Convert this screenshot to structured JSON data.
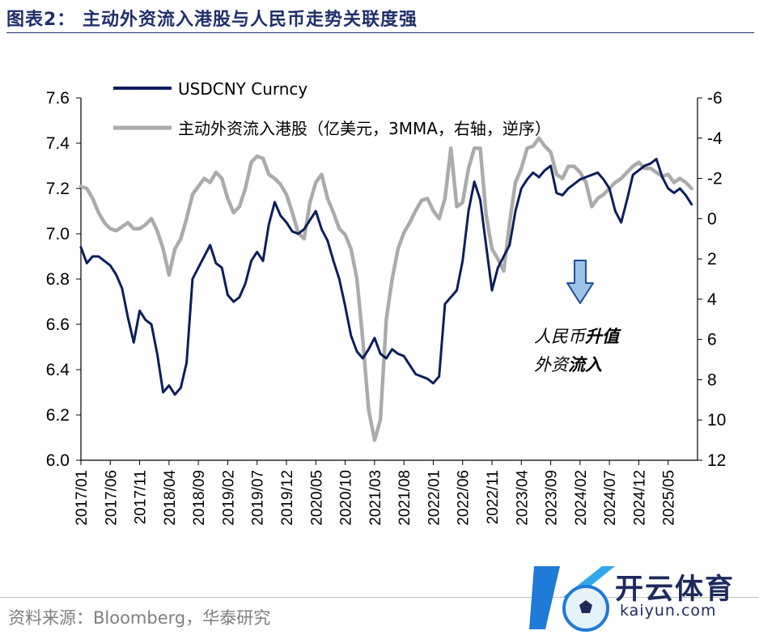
{
  "header": {
    "title": "图表2：  主动外资流入港股与人民币走势关联度强"
  },
  "footer": {
    "source": "资料来源：Bloomberg，华泰研究"
  },
  "watermark": {
    "brand": "开云体育",
    "domain": "kaiyun.com"
  },
  "colors": {
    "usdcny": "#0d1e5c",
    "flows": "#ababab",
    "arrow_fill": "#9dc3e6",
    "arrow_stroke": "#1f4e9a",
    "axis": "#000000"
  },
  "chart_data": {
    "type": "line",
    "title": "",
    "x_labels": [
      "2017/01",
      "2017/06",
      "2017/11",
      "2018/04",
      "2018/09",
      "2019/02",
      "2019/07",
      "2019/12",
      "2020/05",
      "2020/10",
      "2021/03",
      "2021/08",
      "2022/01",
      "2022/06",
      "2022/11",
      "2023/04",
      "2023/09",
      "2024/02",
      "2024/07",
      "2024/12",
      "2025/05"
    ],
    "x_range": [
      0,
      105
    ],
    "y_left": {
      "min": 6.0,
      "max": 7.6,
      "ticks": [
        "7.6",
        "7.4",
        "7.2",
        "7.0",
        "6.8",
        "6.6",
        "6.4",
        "6.2",
        "6.0"
      ]
    },
    "y_right": {
      "min": -6,
      "max": 12,
      "inverted": true,
      "ticks": [
        "-6",
        "-4",
        "-2",
        "0",
        "2",
        "4",
        "6",
        "8",
        "10",
        "12"
      ]
    },
    "legend": [
      "USDCNY Curncy",
      "主动外资流入港股（亿美元，3MMA，右轴，逆序）"
    ],
    "annotations": {
      "line1": [
        "人民币",
        "升值"
      ],
      "line2": [
        "外资",
        "流入"
      ]
    },
    "series": [
      {
        "name": "USDCNY Curncy",
        "axis": "left",
        "x": [
          0,
          1,
          2,
          3,
          4,
          5,
          6,
          7,
          8,
          9,
          10,
          11,
          12,
          13,
          14,
          15,
          16,
          17,
          18,
          19,
          20,
          21,
          22,
          23,
          24,
          25,
          26,
          27,
          28,
          29,
          30,
          31,
          32,
          33,
          34,
          35,
          36,
          37,
          38,
          39,
          40,
          41,
          42,
          43,
          44,
          45,
          46,
          47,
          48,
          49,
          50,
          51,
          52,
          53,
          54,
          55,
          56,
          57,
          58,
          59,
          60,
          61,
          62,
          63,
          64,
          65,
          66,
          67,
          68,
          69,
          70,
          71,
          72,
          73,
          74,
          75,
          76,
          77,
          78,
          79,
          80,
          81,
          82,
          83,
          84,
          85,
          86,
          87,
          88,
          89,
          90,
          91,
          92,
          93,
          94,
          95,
          96,
          97,
          98,
          99,
          100,
          101,
          102,
          103,
          104
        ],
        "values": [
          6.94,
          6.87,
          6.9,
          6.9,
          6.88,
          6.86,
          6.82,
          6.76,
          6.63,
          6.52,
          6.66,
          6.62,
          6.6,
          6.47,
          6.3,
          6.33,
          6.29,
          6.32,
          6.43,
          6.8,
          6.85,
          6.9,
          6.95,
          6.87,
          6.85,
          6.73,
          6.7,
          6.72,
          6.78,
          6.88,
          6.92,
          6.88,
          7.04,
          7.14,
          7.08,
          7.05,
          7.01,
          7.0,
          7.02,
          7.06,
          7.1,
          7.02,
          6.97,
          6.88,
          6.8,
          6.68,
          6.55,
          6.48,
          6.45,
          6.49,
          6.54,
          6.47,
          6.45,
          6.49,
          6.47,
          6.46,
          6.42,
          6.38,
          6.37,
          6.36,
          6.34,
          6.37,
          6.69,
          6.72,
          6.75,
          6.88,
          7.1,
          7.23,
          7.15,
          6.95,
          6.75,
          6.85,
          6.9,
          6.95,
          7.1,
          7.2,
          7.24,
          7.27,
          7.25,
          7.28,
          7.3,
          7.18,
          7.17,
          7.2,
          7.22,
          7.24,
          7.25,
          7.26,
          7.27,
          7.24,
          7.2,
          7.1,
          7.05,
          7.15,
          7.26,
          7.28,
          7.3,
          7.31,
          7.33,
          7.25,
          7.2,
          7.18,
          7.2,
          7.17,
          7.13
        ]
      },
      {
        "name": "主动外资流入港股（亿美元，3MMA，右轴，逆序）",
        "axis": "right",
        "x": [
          0,
          1,
          2,
          3,
          4,
          5,
          6,
          7,
          8,
          9,
          10,
          11,
          12,
          13,
          14,
          15,
          16,
          17,
          18,
          19,
          20,
          21,
          22,
          23,
          24,
          25,
          26,
          27,
          28,
          29,
          30,
          31,
          32,
          33,
          34,
          35,
          36,
          37,
          38,
          39,
          40,
          41,
          42,
          43,
          44,
          45,
          46,
          47,
          48,
          49,
          50,
          51,
          52,
          53,
          54,
          55,
          56,
          57,
          58,
          59,
          60,
          61,
          62,
          63,
          64,
          65,
          66,
          67,
          68,
          69,
          70,
          71,
          72,
          73,
          74,
          75,
          76,
          77,
          78,
          79,
          80,
          81,
          82,
          83,
          84,
          85,
          86,
          87,
          88,
          89,
          90,
          91,
          92,
          93,
          94,
          95,
          96,
          97,
          98,
          99,
          100,
          101,
          102,
          103,
          104
        ],
        "values": [
          -1.6,
          -1.5,
          -1.0,
          -0.3,
          0.2,
          0.5,
          0.6,
          0.4,
          0.2,
          0.5,
          0.5,
          0.3,
          0.0,
          0.6,
          1.5,
          2.8,
          1.5,
          1.0,
          0.0,
          -1.2,
          -1.6,
          -2.0,
          -1.8,
          -2.3,
          -2.0,
          -1.0,
          -0.3,
          -0.6,
          -1.5,
          -2.8,
          -3.1,
          -3.0,
          -2.2,
          -2.0,
          -1.7,
          -1.2,
          -0.3,
          0.7,
          1.0,
          -0.8,
          -1.8,
          -2.2,
          -1.0,
          -0.3,
          0.5,
          0.8,
          1.5,
          3.0,
          6.0,
          9.5,
          11.0,
          10.0,
          5.0,
          3.0,
          1.5,
          0.7,
          0.2,
          -0.4,
          -0.9,
          -1.0,
          -0.4,
          0.0,
          -1.0,
          -3.5,
          -0.6,
          -0.8,
          -2.5,
          -3.5,
          -3.5,
          -0.2,
          1.5,
          2.0,
          2.6,
          0.2,
          -1.8,
          -2.5,
          -3.5,
          -3.6,
          -4.0,
          -3.6,
          -3.3,
          -2.2,
          -2.0,
          -2.6,
          -2.6,
          -2.3,
          -1.8,
          -0.6,
          -1.0,
          -1.2,
          -1.5,
          -1.8,
          -2.0,
          -2.3,
          -2.6,
          -2.8,
          -2.5,
          -2.5,
          -2.3,
          -2.1,
          -2.2,
          -1.8,
          -2.0,
          -1.8,
          -1.5
        ]
      }
    ]
  }
}
